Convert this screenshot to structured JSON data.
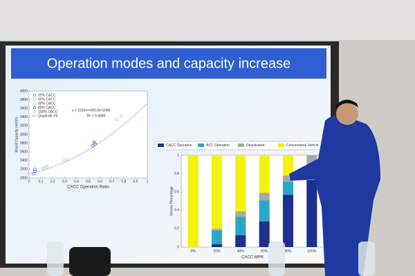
{
  "slide": {
    "title": "Operation modes and capacity increase"
  },
  "chart_data": [
    {
      "type": "scatter",
      "xlabel": "CACC Operation Ratio",
      "ylabel": "Mixed Capacity (veh/h)",
      "xlim": [
        0,
        1
      ],
      "xticks": [
        0,
        0.1,
        0.2,
        0.3,
        0.4,
        0.5,
        0.6,
        0.7,
        0.8,
        0.9,
        1
      ],
      "ylim": [
        2000,
        4000
      ],
      "yticks": [
        2000,
        2200,
        2400,
        2600,
        2800,
        3000,
        3200,
        3400,
        3600,
        3800,
        4000
      ],
      "annotations": [
        "y = 1033x²+595.9x+2089",
        "R² = 0.9689"
      ],
      "series": [
        {
          "name": "20% CACC",
          "color": "#3a6fd8",
          "x": [
            0.04,
            0.05,
            0.05
          ],
          "y": [
            2100,
            2150,
            2200
          ]
        },
        {
          "name": "40% CACC",
          "color": "#9ab8e8",
          "x": [
            0.12,
            0.15
          ],
          "y": [
            2230,
            2260
          ]
        },
        {
          "name": "60% CACC",
          "color": "#c8d870",
          "x": [
            0.3,
            0.32
          ],
          "y": [
            2400,
            2430
          ]
        },
        {
          "name": "80% CACC",
          "color": "#3050a0",
          "x": [
            0.54,
            0.56,
            0.55
          ],
          "y": [
            2740,
            2780,
            2820
          ]
        },
        {
          "name": "100% CACC",
          "color": "#b0c8e0",
          "x": [
            0.74,
            0.78
          ],
          "y": [
            3350,
            3420
          ]
        },
        {
          "name": "Quadratic Fit",
          "color": "#6a9ad0",
          "mode": "line",
          "x": [
            0,
            0.1,
            0.2,
            0.3,
            0.4,
            0.5,
            0.6,
            0.7,
            0.8,
            0.9,
            1
          ],
          "y": [
            2089,
            2159,
            2250,
            2361,
            2493,
            2645,
            2818,
            3012,
            3227,
            3462,
            3718
          ]
        }
      ]
    },
    {
      "type": "bar",
      "xlabel": "CACC MPR",
      "ylabel": "Vehicle Percentage",
      "categories": [
        "0%",
        "20%",
        "40%",
        "60%",
        "80%",
        "100%"
      ],
      "ylim": [
        0,
        1
      ],
      "yticks": [
        0,
        0.2,
        0.4,
        0.6,
        0.8,
        1
      ],
      "series": [
        {
          "name": "CACC Operation",
          "color": "#1f2f8f",
          "values": [
            0,
            0.03,
            0.13,
            0.28,
            0.57,
            0.73
          ]
        },
        {
          "name": "ACC Operation",
          "color": "#2aa6c6",
          "values": [
            0,
            0.15,
            0.2,
            0.23,
            0.14,
            0
          ]
        },
        {
          "name": "Deactivated",
          "color": "#a8a8a8",
          "values": [
            0,
            0.02,
            0.06,
            0.08,
            0.07,
            0.27
          ]
        },
        {
          "name": "Conventional Vehicle",
          "color": "#f2f20a",
          "values": [
            1,
            0.8,
            0.61,
            0.41,
            0.22,
            0
          ]
        }
      ]
    }
  ]
}
